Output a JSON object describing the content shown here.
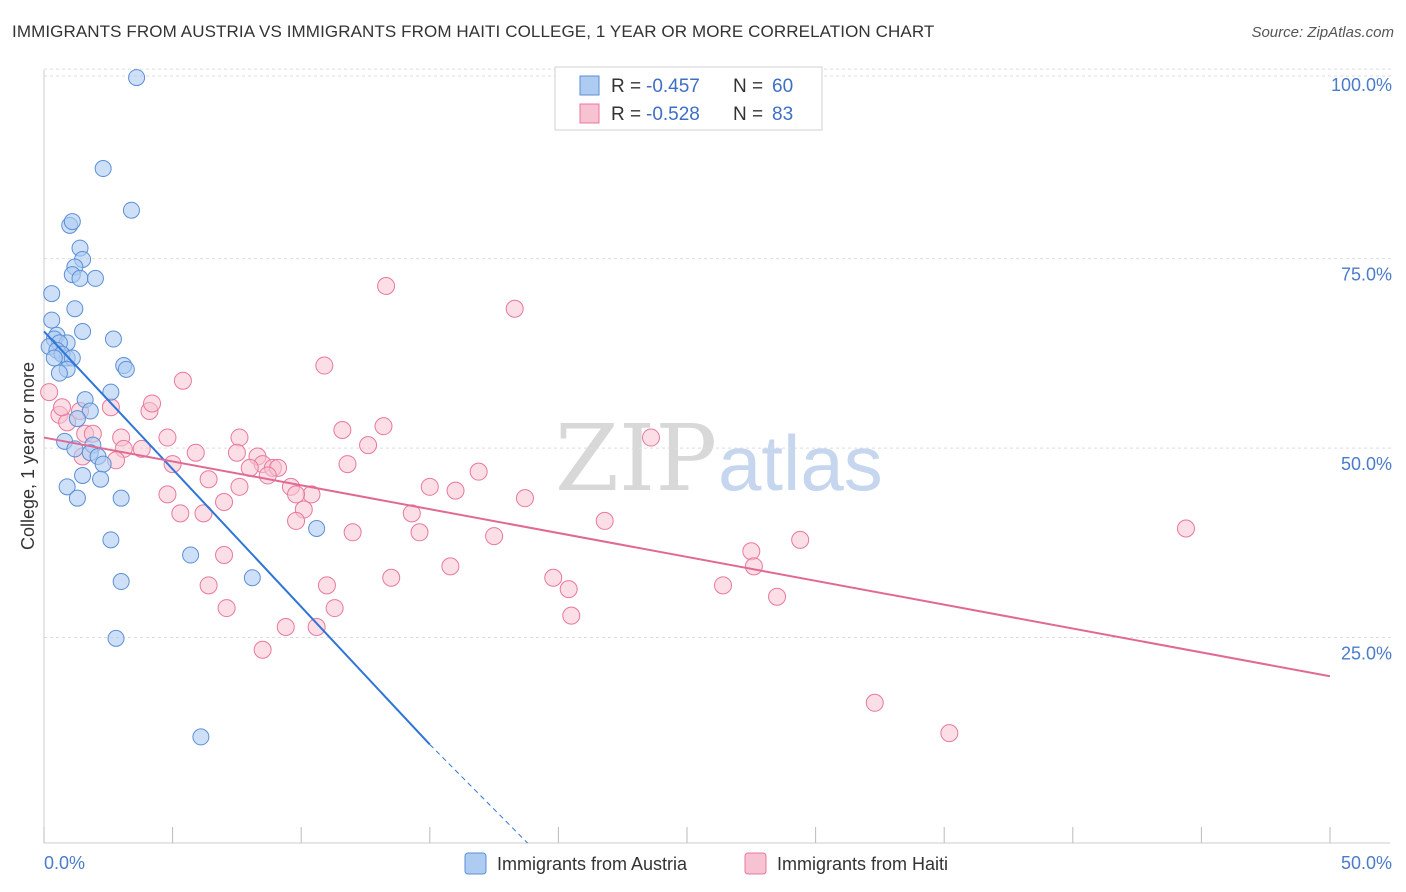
{
  "title": "IMMIGRANTS FROM AUSTRIA VS IMMIGRANTS FROM HAITI COLLEGE, 1 YEAR OR MORE CORRELATION CHART",
  "source": "Source: ZipAtlas.com",
  "watermark": {
    "zip": "ZIP",
    "atlas": "atlas"
  },
  "colors": {
    "austria_fill": "#aecbf2",
    "austria_stroke": "#5b8fd6",
    "austria_line": "#2f74d6",
    "haiti_fill": "#f7c2d2",
    "haiti_stroke": "#e8799c",
    "haiti_line": "#e06a93",
    "grid": "#dddddd",
    "tick_text": "#4a7cc9"
  },
  "legend": {
    "rows": [
      {
        "r_label": "R = ",
        "r_value": "-0.457",
        "n_label": "N = ",
        "n_value": "60"
      },
      {
        "r_label": "R = ",
        "r_value": "-0.528",
        "n_label": "N = ",
        "n_value": "83"
      }
    ]
  },
  "chart_data": {
    "type": "scatter",
    "title": "IMMIGRANTS FROM AUSTRIA VS IMMIGRANTS FROM HAITI COLLEGE, 1 YEAR OR MORE CORRELATION CHART",
    "xlabel": "",
    "ylabel": "College, 1 year or more",
    "xlim": [
      0,
      50
    ],
    "ylim": [
      0,
      102
    ],
    "x_tick_labels": {
      "left": "0.0%",
      "right": "50.0%"
    },
    "y_ticks": [
      {
        "value": 100,
        "label": "100.0%"
      },
      {
        "value": 75,
        "label": "75.0%"
      },
      {
        "value": 50,
        "label": "50.0%"
      },
      {
        "value": 25,
        "label": "25.0%"
      }
    ],
    "series": [
      {
        "name": "Immigrants from Austria",
        "r": -0.457,
        "n": 60,
        "trend": {
          "x0": 0.0,
          "y0": 67.5,
          "x1": 15.0,
          "y1": 13.0,
          "dash_to_x": 18.8,
          "dash_to_y": 0.0
        },
        "points": [
          [
            3.6,
            101
          ],
          [
            2.3,
            89
          ],
          [
            3.4,
            83.5
          ],
          [
            1.0,
            81.5
          ],
          [
            1.1,
            82
          ],
          [
            1.4,
            78.5
          ],
          [
            1.5,
            77
          ],
          [
            1.2,
            76
          ],
          [
            1.1,
            75
          ],
          [
            1.4,
            74.5
          ],
          [
            2.0,
            74.5
          ],
          [
            0.3,
            72.5
          ],
          [
            1.2,
            70.5
          ],
          [
            0.3,
            69
          ],
          [
            1.5,
            67.5
          ],
          [
            0.5,
            67
          ],
          [
            2.7,
            66.5
          ],
          [
            0.4,
            66.5
          ],
          [
            0.9,
            66
          ],
          [
            0.6,
            66
          ],
          [
            0.2,
            65.5
          ],
          [
            0.5,
            65
          ],
          [
            0.9,
            64
          ],
          [
            0.7,
            64.5
          ],
          [
            1.1,
            64
          ],
          [
            0.4,
            64
          ],
          [
            3.1,
            63
          ],
          [
            3.2,
            62.5
          ],
          [
            0.9,
            62.5
          ],
          [
            0.6,
            62
          ],
          [
            2.6,
            59.5
          ],
          [
            1.6,
            58.5
          ],
          [
            1.8,
            57
          ],
          [
            1.3,
            56
          ],
          [
            0.8,
            53
          ],
          [
            1.9,
            52.5
          ],
          [
            1.2,
            52
          ],
          [
            1.8,
            51.5
          ],
          [
            2.1,
            51
          ],
          [
            2.3,
            50
          ],
          [
            1.5,
            48.5
          ],
          [
            2.2,
            48
          ],
          [
            0.9,
            47
          ],
          [
            1.3,
            45.5
          ],
          [
            3.0,
            45.5
          ],
          [
            10.6,
            41.5
          ],
          [
            2.6,
            40
          ],
          [
            5.7,
            38
          ],
          [
            3.0,
            34.5
          ],
          [
            8.1,
            35
          ],
          [
            2.8,
            27
          ],
          [
            6.1,
            14
          ]
        ]
      },
      {
        "name": "Immigrants from Haiti",
        "r": -0.528,
        "n": 83,
        "trend": {
          "x0": 0.0,
          "y0": 53.5,
          "x1": 50.0,
          "y1": 22.0
        },
        "points": [
          [
            0.2,
            59.5
          ],
          [
            0.6,
            56.5
          ],
          [
            0.9,
            55.5
          ],
          [
            0.7,
            57.5
          ],
          [
            1.4,
            57
          ],
          [
            2.6,
            57.5
          ],
          [
            4.1,
            57
          ],
          [
            4.2,
            58
          ],
          [
            5.4,
            61
          ],
          [
            13.3,
            73.5
          ],
          [
            18.3,
            70.5
          ],
          [
            10.9,
            63
          ],
          [
            1.6,
            54
          ],
          [
            1.9,
            54
          ],
          [
            3.0,
            53.5
          ],
          [
            3.1,
            52
          ],
          [
            4.8,
            53.5
          ],
          [
            3.8,
            52
          ],
          [
            1.5,
            51
          ],
          [
            2.8,
            50.5
          ],
          [
            5.0,
            50
          ],
          [
            5.9,
            51.5
          ],
          [
            7.6,
            53.5
          ],
          [
            7.5,
            51.5
          ],
          [
            8.3,
            51
          ],
          [
            8.5,
            50
          ],
          [
            8.9,
            49.5
          ],
          [
            8.0,
            49.5
          ],
          [
            9.1,
            49.5
          ],
          [
            8.7,
            48.5
          ],
          [
            6.4,
            48
          ],
          [
            4.8,
            46
          ],
          [
            5.3,
            43.5
          ],
          [
            6.2,
            43.5
          ],
          [
            7.0,
            45
          ],
          [
            7.6,
            47
          ],
          [
            9.6,
            47
          ],
          [
            10.4,
            46
          ],
          [
            9.8,
            46
          ],
          [
            10.1,
            44
          ],
          [
            11.8,
            50
          ],
          [
            11.6,
            54.5
          ],
          [
            12.6,
            52.5
          ],
          [
            13.2,
            55
          ],
          [
            14.3,
            43.5
          ],
          [
            15.0,
            47
          ],
          [
            16.0,
            46.5
          ],
          [
            16.9,
            49
          ],
          [
            17.5,
            40.5
          ],
          [
            18.7,
            45.5
          ],
          [
            7.0,
            38
          ],
          [
            9.8,
            42.5
          ],
          [
            12.0,
            41
          ],
          [
            14.6,
            41
          ],
          [
            6.4,
            34
          ],
          [
            11.0,
            34
          ],
          [
            13.5,
            35
          ],
          [
            15.8,
            36.5
          ],
          [
            7.1,
            31
          ],
          [
            11.3,
            31
          ],
          [
            19.8,
            35
          ],
          [
            20.4,
            33.5
          ],
          [
            20.5,
            30
          ],
          [
            21.8,
            42.5
          ],
          [
            23.6,
            53.5
          ],
          [
            26.4,
            34
          ],
          [
            27.5,
            38.5
          ],
          [
            27.6,
            36.5
          ],
          [
            28.5,
            32.5
          ],
          [
            29.4,
            40
          ],
          [
            9.4,
            28.5
          ],
          [
            10.6,
            28.5
          ],
          [
            8.5,
            25.5
          ],
          [
            32.3,
            18.5
          ],
          [
            35.2,
            14.5
          ],
          [
            44.4,
            41.5
          ]
        ]
      }
    ]
  },
  "bottom_legend": [
    {
      "label": "Immigrants from Austria"
    },
    {
      "label": "Immigrants from Haiti"
    }
  ]
}
